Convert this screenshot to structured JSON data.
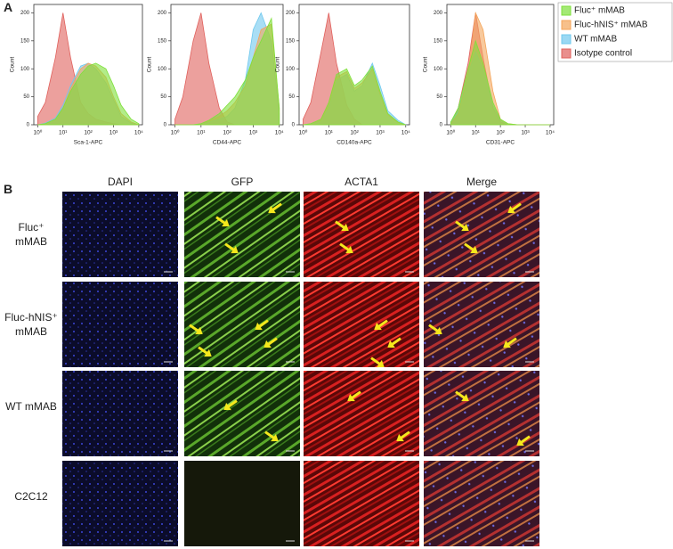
{
  "panel_a": {
    "label": "A"
  },
  "chart_data": [
    {
      "type": "histogram",
      "xlabel": "Sca-1-APC",
      "ylabel": "Count",
      "xscale": "log",
      "xlim": [
        0.7,
        14000
      ],
      "ylim": [
        0,
        215
      ],
      "xticks": [
        {
          "value": 1,
          "label": "10⁰"
        },
        {
          "value": 10,
          "label": "10¹"
        },
        {
          "value": 100,
          "label": "10²"
        },
        {
          "value": 1000,
          "label": "10³"
        },
        {
          "value": 10000,
          "label": "10⁴"
        }
      ],
      "yticks": [
        0,
        50,
        100,
        150,
        200
      ],
      "x": [
        1,
        2,
        5,
        10,
        20,
        50,
        100,
        200,
        500,
        1000,
        2000,
        5000,
        10000
      ],
      "series": [
        {
          "name": "Fluc⁺ mMAB",
          "color": "#7ee03a",
          "values": [
            0,
            2,
            10,
            30,
            60,
            90,
            105,
            110,
            100,
            70,
            35,
            10,
            2
          ]
        },
        {
          "name": "Fluc-hNIS⁺ mMAB",
          "color": "#f4a55a",
          "values": [
            0,
            2,
            10,
            30,
            65,
            100,
            110,
            105,
            85,
            50,
            20,
            5,
            0
          ]
        },
        {
          "name": "WT mMAB",
          "color": "#6fc8ee",
          "values": [
            0,
            3,
            12,
            35,
            70,
            105,
            110,
            100,
            75,
            45,
            15,
            3,
            0
          ]
        },
        {
          "name": "Isotype control",
          "color": "#e0605c",
          "values": [
            15,
            40,
            120,
            200,
            120,
            40,
            20,
            10,
            5,
            2,
            0,
            0,
            0
          ]
        }
      ]
    },
    {
      "type": "histogram",
      "xlabel": "CD44-APC",
      "ylabel": "Count",
      "xscale": "log",
      "xlim": [
        0.7,
        14000
      ],
      "ylim": [
        0,
        215
      ],
      "xticks": [
        {
          "value": 1,
          "label": "10⁰"
        },
        {
          "value": 10,
          "label": "10¹"
        },
        {
          "value": 100,
          "label": "10²"
        },
        {
          "value": 1000,
          "label": "10³"
        },
        {
          "value": 10000,
          "label": "10⁴"
        }
      ],
      "yticks": [
        0,
        50,
        100,
        150,
        200
      ],
      "x": [
        1,
        2,
        5,
        10,
        20,
        50,
        100,
        200,
        500,
        1000,
        2000,
        5000,
        10000
      ],
      "series": [
        {
          "color": "#7ee03a",
          "values": [
            0,
            0,
            0,
            2,
            8,
            20,
            35,
            50,
            80,
            120,
            150,
            190,
            30
          ]
        },
        {
          "color": "#f4a55a",
          "values": [
            0,
            0,
            0,
            2,
            6,
            15,
            25,
            40,
            70,
            120,
            170,
            180,
            30
          ]
        },
        {
          "color": "#6fc8ee",
          "values": [
            0,
            0,
            0,
            2,
            5,
            10,
            15,
            30,
            80,
            170,
            200,
            150,
            20
          ]
        },
        {
          "color": "#e0605c",
          "values": [
            10,
            50,
            150,
            200,
            110,
            30,
            5,
            0,
            0,
            0,
            0,
            0,
            0
          ]
        }
      ]
    },
    {
      "type": "histogram",
      "xlabel": "CD140a-APC",
      "ylabel": "Count",
      "xscale": "log",
      "xlim": [
        0.7,
        14000
      ],
      "ylim": [
        0,
        215
      ],
      "xticks": [
        {
          "value": 1,
          "label": "10⁰"
        },
        {
          "value": 10,
          "label": "10¹"
        },
        {
          "value": 100,
          "label": "10²"
        },
        {
          "value": 1000,
          "label": "10³"
        },
        {
          "value": 10000,
          "label": "10⁴"
        }
      ],
      "yticks": [
        0,
        50,
        100,
        150,
        200
      ],
      "x": [
        1,
        2,
        5,
        10,
        20,
        50,
        100,
        200,
        500,
        1000,
        2000,
        5000,
        10000
      ],
      "series": [
        {
          "color": "#7ee03a",
          "values": [
            0,
            2,
            10,
            40,
            90,
            100,
            70,
            80,
            105,
            60,
            20,
            5,
            0
          ]
        },
        {
          "color": "#f4a55a",
          "values": [
            0,
            2,
            8,
            35,
            85,
            95,
            65,
            75,
            100,
            55,
            18,
            4,
            0
          ]
        },
        {
          "color": "#6fc8ee",
          "values": [
            0,
            2,
            8,
            30,
            80,
            90,
            60,
            70,
            110,
            70,
            25,
            8,
            0
          ]
        },
        {
          "color": "#e0605c",
          "values": [
            10,
            40,
            130,
            200,
            110,
            35,
            10,
            0,
            0,
            0,
            0,
            0,
            0
          ]
        }
      ]
    },
    {
      "type": "histogram",
      "xlabel": "CD31-APC",
      "ylabel": "Count",
      "xscale": "log",
      "xlim": [
        0.7,
        14000
      ],
      "ylim": [
        0,
        215
      ],
      "xticks": [
        {
          "value": 1,
          "label": "10⁰"
        },
        {
          "value": 10,
          "label": "10¹"
        },
        {
          "value": 100,
          "label": "10²"
        },
        {
          "value": 1000,
          "label": "10³"
        },
        {
          "value": 10000,
          "label": "10⁴"
        }
      ],
      "yticks": [
        0,
        50,
        100,
        150,
        200
      ],
      "x": [
        1,
        2,
        5,
        10,
        20,
        50,
        100,
        200,
        500,
        1000,
        2000,
        5000,
        10000
      ],
      "series": [
        {
          "color": "#7ee03a",
          "values": [
            5,
            30,
            100,
            150,
            110,
            40,
            10,
            2,
            0,
            0,
            0,
            0,
            0
          ]
        },
        {
          "color": "#f4a55a",
          "values": [
            2,
            20,
            90,
            200,
            170,
            60,
            10,
            2,
            0,
            0,
            0,
            0,
            0
          ]
        },
        {
          "color": "#6fc8ee",
          "values": [
            5,
            25,
            90,
            130,
            100,
            35,
            8,
            0,
            0,
            0,
            0,
            0,
            0
          ]
        },
        {
          "color": "#e0605c",
          "values": [
            2,
            30,
            110,
            200,
            120,
            30,
            5,
            0,
            0,
            0,
            0,
            0,
            0
          ]
        }
      ]
    }
  ],
  "panel_b": {
    "label": "B",
    "columns": [
      "DAPI",
      "GFP",
      "ACTA1",
      "Merge"
    ],
    "rows": [
      "Fluc⁺ mMAB",
      "Fluc-hNIS⁺ mMAB",
      "WT mMAB",
      "C2C12"
    ]
  }
}
